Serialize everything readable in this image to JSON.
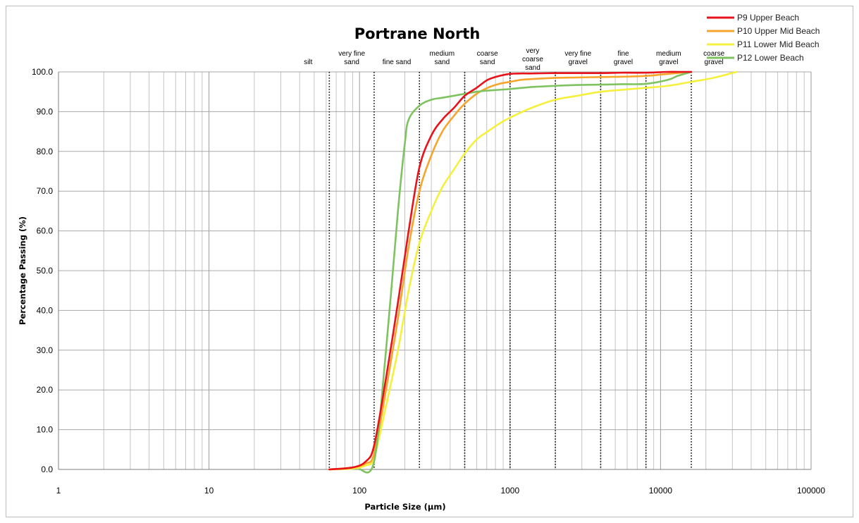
{
  "chart_data": {
    "type": "line",
    "title": "Portrane North",
    "xlabel": "Particle Size (µm)",
    "ylabel": "Percentage Passing (%)",
    "x_scale": "log",
    "xlim": [
      1,
      100000
    ],
    "ylim": [
      0,
      100
    ],
    "x_ticks": [
      "1",
      "10",
      "100",
      "1000",
      "10000",
      "100000"
    ],
    "y_ticks": [
      "0.0",
      "10.0",
      "20.0",
      "30.0",
      "40.0",
      "50.0",
      "60.0",
      "70.0",
      "80.0",
      "90.0",
      "100.0"
    ],
    "grid": true,
    "legend_position": "top-right",
    "size_classes": [
      {
        "lines": [
          "silt"
        ],
        "from": 1,
        "to": 63
      },
      {
        "lines": [
          "very fine",
          "sand"
        ],
        "from": 63,
        "to": 125
      },
      {
        "lines": [
          "fine sand"
        ],
        "from": 125,
        "to": 250
      },
      {
        "lines": [
          "medium",
          "sand"
        ],
        "from": 250,
        "to": 500
      },
      {
        "lines": [
          "coarse",
          "sand"
        ],
        "from": 500,
        "to": 1000
      },
      {
        "lines": [
          "very",
          "coarse",
          "sand"
        ],
        "from": 1000,
        "to": 2000
      },
      {
        "lines": [
          "very fine",
          "gravel"
        ],
        "from": 2000,
        "to": 4000
      },
      {
        "lines": [
          "fine",
          "gravel"
        ],
        "from": 4000,
        "to": 8000
      },
      {
        "lines": [
          "medium",
          "gravel"
        ],
        "from": 8000,
        "to": 16000
      },
      {
        "lines": [
          "coarse",
          "gravel"
        ],
        "from": 16000,
        "to": 32000
      }
    ],
    "boundaries": [
      63,
      125,
      250,
      500,
      1000,
      2000,
      4000,
      8000,
      16000
    ],
    "series": [
      {
        "name": "P9 Upper Beach",
        "color": "#e8121a",
        "x": [
          63,
          90,
          110,
          125,
          150,
          180,
          212,
          250,
          300,
          355,
          425,
          500,
          600,
          710,
          850,
          1000,
          1180,
          1400,
          2000,
          2800,
          4000,
          5600,
          8000,
          11200,
          13000,
          16000
        ],
        "y": [
          0,
          0.5,
          2,
          6,
          23,
          42,
          60,
          76,
          84,
          88,
          91,
          94,
          96,
          98,
          99,
          99.5,
          99.6,
          99.6,
          99.7,
          99.7,
          99.7,
          99.8,
          99.8,
          100,
          100,
          100
        ]
      },
      {
        "name": "P10 Upper Mid Beach",
        "color": "#f5a52b",
        "x": [
          63,
          90,
          110,
          125,
          150,
          180,
          212,
          250,
          300,
          355,
          425,
          500,
          600,
          710,
          850,
          1000,
          1180,
          1400,
          2000,
          2800,
          4000,
          5600,
          8000,
          11200,
          16000
        ],
        "y": [
          0,
          0.5,
          1.5,
          4,
          20,
          38,
          56,
          70,
          79,
          85,
          89,
          92,
          94.5,
          96,
          97,
          97.5,
          98,
          98.2,
          98.5,
          98.6,
          98.7,
          98.8,
          99,
          99.5,
          100
        ]
      },
      {
        "name": "P11 Lower Mid Beach",
        "color": "#f4f03c",
        "x": [
          63,
          90,
          110,
          125,
          150,
          180,
          212,
          250,
          300,
          355,
          425,
          500,
          600,
          710,
          850,
          1000,
          1400,
          2000,
          2800,
          4000,
          5600,
          8000,
          11200,
          16000,
          22400,
          32000
        ],
        "y": [
          0,
          0.2,
          1,
          3,
          16,
          30,
          45,
          57,
          65,
          71,
          75.5,
          79.5,
          83,
          85,
          87,
          88.5,
          91,
          93,
          94,
          95,
          95.5,
          96,
          96.5,
          97.5,
          98.5,
          100
        ]
      },
      {
        "name": "P12 Lower Beach",
        "color": "#7ec35f",
        "x": [
          100,
          125,
          150,
          180,
          200,
          212,
          250,
          300,
          355,
          425,
          500,
          600,
          710,
          850,
          1000,
          1400,
          2000,
          2800,
          4000,
          5600,
          8000,
          11200,
          13000,
          16000
        ],
        "y": [
          0,
          2,
          30,
          65,
          82,
          88,
          91.5,
          93,
          93.5,
          94,
          94.5,
          95,
          95.3,
          95.5,
          95.7,
          96.2,
          96.5,
          96.7,
          96.8,
          96.9,
          97,
          98,
          99,
          100
        ]
      }
    ]
  }
}
